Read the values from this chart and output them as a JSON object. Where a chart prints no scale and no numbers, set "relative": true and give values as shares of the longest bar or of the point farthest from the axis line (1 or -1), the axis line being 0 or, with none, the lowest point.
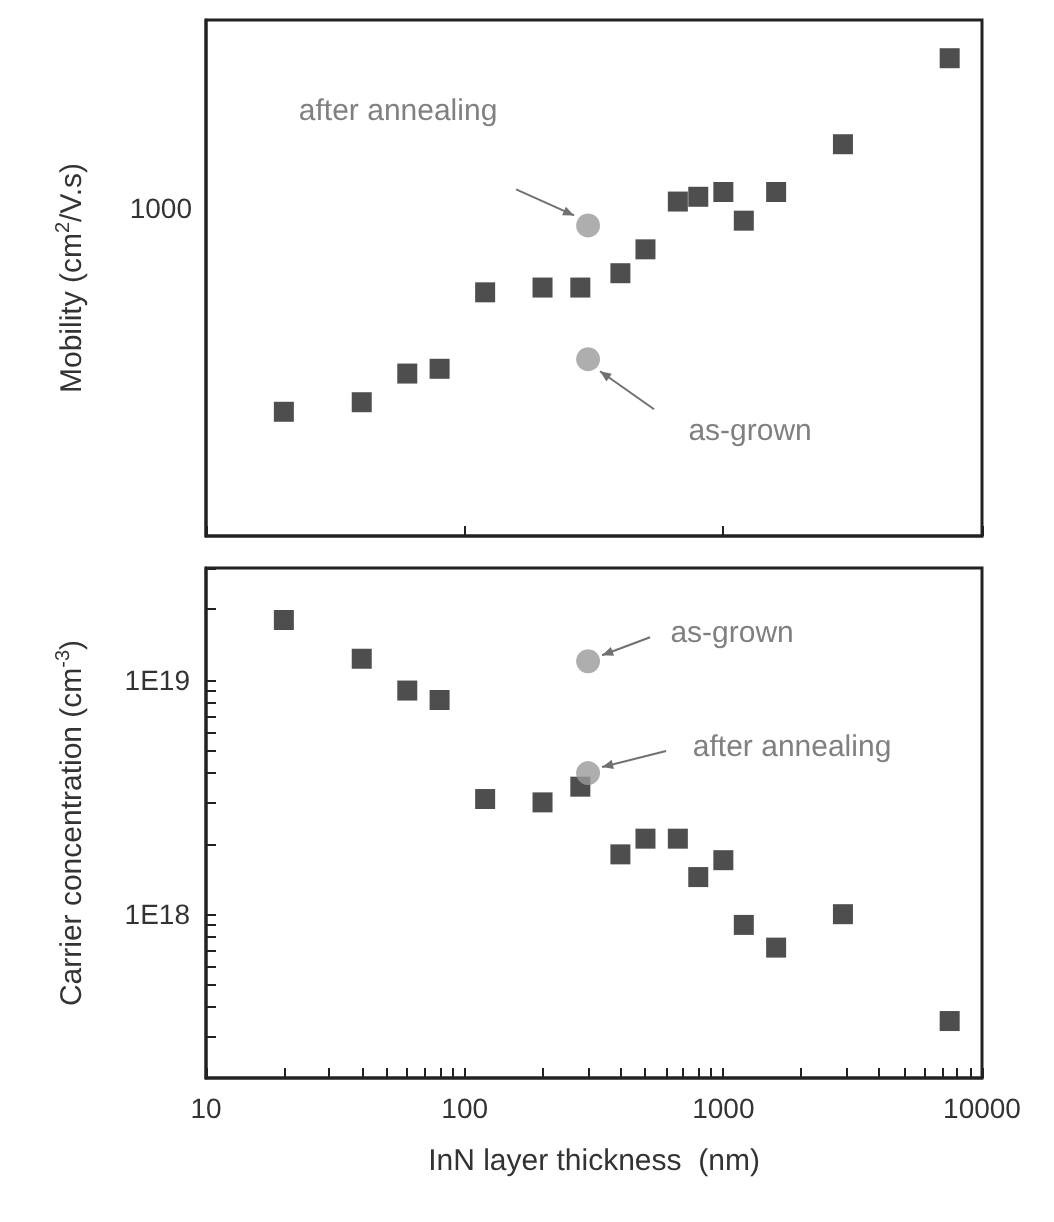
{
  "chart_data": [
    {
      "type": "scatter",
      "ylabel": "Mobility (cm$^{2}$/V.s)",
      "log": "x",
      "marker": "square",
      "grid": false,
      "tick_labels": false,
      "relative": true,
      "x": [
        20,
        40,
        60,
        80,
        120,
        200,
        280,
        300,
        400,
        500,
        667,
        800,
        1000,
        1200,
        1600,
        2900,
        7500
      ],
      "series": [
        {
          "color": "#222222",
          "values": [
            0.26,
            0.28,
            0.34,
            0.35,
            0.51,
            0.52,
            0.52,
            null,
            0.55,
            0.6,
            0.7,
            0.71,
            0.72,
            0.66,
            0.72,
            0.82,
            1
          ]
        },
        {
          "color": "#9a9a9a",
          "marker": "circle",
          "values": [
            null,
            null,
            null,
            null,
            null,
            null,
            null,
            0.65,
            null,
            null,
            null,
            null,
            null,
            null,
            null,
            null,
            null
          ]
        },
        {
          "color": "#9a9a9a",
          "marker": "circle",
          "values": [
            null,
            null,
            null,
            null,
            null,
            null,
            null,
            0.37,
            null,
            null,
            null,
            null,
            null,
            null,
            null,
            null,
            null
          ]
        }
      ],
      "xlim": [
        10,
        10000
      ],
      "xticks": [
        10,
        100,
        1000,
        10000
      ],
      "annotations": [
        "after annealing",
        "as-grown",
        "1000"
      ]
    },
    {
      "type": "scatter",
      "xlabel": "InN layer thickness  (nm)",
      "ylabel": "Carrier concentration (cm$^{-3}$)",
      "log": "xy",
      "marker": "square",
      "grid": false,
      "x": [
        20,
        40,
        60,
        80,
        120,
        200,
        280,
        300,
        400,
        500,
        667,
        800,
        1000,
        1200,
        1600,
        2900,
        7500
      ],
      "series": [
        {
          "color": "#222222",
          "values": [
            1.8e+19,
            1.23e+19,
            9e+18,
            8.2e+18,
            3.1e+18,
            3e+18,
            3.5e+18,
            null,
            1.8e+18,
            2.1e+18,
            2.1e+18,
            1.44e+18,
            1.7e+18,
            9e+17,
            7.2e+17,
            1e+18,
            3.5e+17
          ]
        },
        {
          "color": "#9a9a9a",
          "marker": "circle",
          "values": [
            null,
            null,
            null,
            null,
            null,
            null,
            null,
            1.2e+19,
            null,
            null,
            null,
            null,
            null,
            null,
            null,
            null,
            null
          ]
        },
        {
          "color": "#9a9a9a",
          "marker": "circle",
          "values": [
            null,
            null,
            null,
            null,
            null,
            null,
            null,
            4e+18,
            null,
            null,
            null,
            null,
            null,
            null,
            null,
            null,
            null
          ]
        }
      ],
      "xlim": [
        10,
        10000
      ],
      "xticks": [
        10,
        {
          "value": 20,
          "label": null
        },
        {
          "value": 30,
          "label": null
        },
        {
          "value": 40,
          "label": null
        },
        {
          "value": 50,
          "label": null
        },
        {
          "value": 60,
          "label": null
        },
        {
          "value": 70,
          "label": null
        },
        {
          "value": 80,
          "label": null
        },
        {
          "value": 90,
          "label": null
        },
        100,
        {
          "value": 200,
          "label": null
        },
        {
          "value": 300,
          "label": null
        },
        {
          "value": 400,
          "label": null
        },
        {
          "value": 500,
          "label": null
        },
        {
          "value": 600,
          "label": null
        },
        {
          "value": 700,
          "label": null
        },
        {
          "value": 800,
          "label": null
        },
        {
          "value": 900,
          "label": null
        },
        1000,
        {
          "value": 2000,
          "label": null
        },
        {
          "value": 3000,
          "label": null
        },
        {
          "value": 4000,
          "label": null
        },
        {
          "value": 5000,
          "label": null
        },
        {
          "value": 6000,
          "label": null
        },
        {
          "value": 7000,
          "label": null
        },
        {
          "value": 8000,
          "label": null
        },
        {
          "value": 9000,
          "label": null
        },
        10000
      ],
      "ylim": [
        2e+17,
        3e+19
      ],
      "yticks": [
        {
          "value": 2e+17,
          "label": null
        },
        {
          "value": 3e+17,
          "label": null
        },
        {
          "value": 4e+17,
          "label": null
        },
        {
          "value": 5e+17,
          "label": null
        },
        {
          "value": 6e+17,
          "label": null
        },
        {
          "value": 7e+17,
          "label": null
        },
        {
          "value": 8e+17,
          "label": null
        },
        {
          "value": 9e+17,
          "label": null
        },
        {
          "value": 1e+18,
          "label": "1E18"
        },
        {
          "value": 2e+18,
          "label": null
        },
        {
          "value": 3e+18,
          "label": null
        },
        {
          "value": 4e+18,
          "label": null
        },
        {
          "value": 5e+18,
          "label": null
        },
        {
          "value": 6e+18,
          "label": null
        },
        {
          "value": 7e+18,
          "label": null
        },
        {
          "value": 8e+18,
          "label": null
        },
        {
          "value": 9e+18,
          "label": null
        },
        {
          "value": 1e+19,
          "label": "1E19"
        },
        {
          "value": 2e+19,
          "label": null
        },
        {
          "value": 3e+19,
          "label": null
        }
      ],
      "annotations": [
        {
          "text": "as-grown",
          "x": 300,
          "y": 1.2e+19
        },
        {
          "text": "after annealing",
          "x": 300,
          "y": 4e+18
        }
      ]
    }
  ]
}
